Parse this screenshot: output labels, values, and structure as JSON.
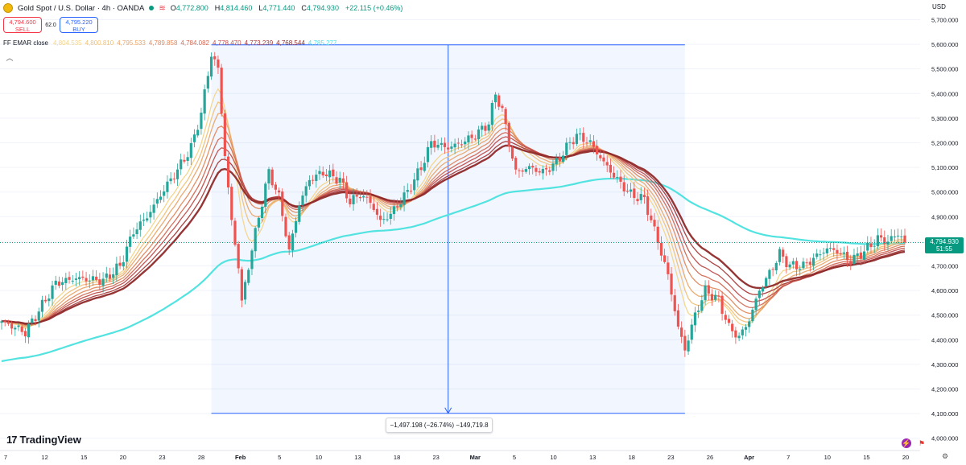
{
  "header": {
    "title": "Gold Spot / U.S. Dollar · 4h · OANDA",
    "wave_icon": "≋",
    "ohlc": [
      {
        "k": "O",
        "v": "4,772.800"
      },
      {
        "k": "H",
        "v": "4,814.460"
      },
      {
        "k": "L",
        "v": "4,771.440"
      },
      {
        "k": "C",
        "v": "4,794.930"
      }
    ],
    "change": "+22.115 (+0.46%)"
  },
  "trade": {
    "sell_price": "4,794.600",
    "sell_label": "SELL",
    "spread": "62.0",
    "buy_price": "4,795.220",
    "buy_label": "BUY"
  },
  "indicator": {
    "name": "FF EMAR close",
    "values": [
      "4,804.535",
      "4,800.810",
      "4,795.533",
      "4,789.858",
      "4,784.082",
      "4,778.470",
      "4,773.239",
      "4,768.544",
      "4,785.277"
    ],
    "colors": [
      "#f3d58a",
      "#f0c27a",
      "#eaa76b",
      "#e08a5f",
      "#d26a55",
      "#c04e4b",
      "#a83a3a",
      "#8f2a2a",
      "#52e3e1"
    ]
  },
  "price_axis": {
    "currency": "USD",
    "ticks": [
      5700,
      5600,
      5500,
      5400,
      5300,
      5200,
      5100,
      5000,
      4900,
      4800,
      4700,
      4600,
      4500,
      4400,
      4300,
      4200,
      4100,
      4000
    ],
    "tick_labels": [
      "5,700.000",
      "5,600.000",
      "5,500.000",
      "5,400.000",
      "5,300.000",
      "5,200.000",
      "5,100.000",
      "5,000.000",
      "4,900.000",
      "4,800.000",
      "4,700.000",
      "4,600.000",
      "4,500.000",
      "4,400.000",
      "4,300.000",
      "4,200.000",
      "4,100.000",
      "4,000.000"
    ],
    "current_price": "4,794.930",
    "countdown": "51:55"
  },
  "time_axis": {
    "labels": [
      "7",
      "12",
      "15",
      "20",
      "23",
      "28",
      "Feb",
      "5",
      "10",
      "13",
      "18",
      "23",
      "Mar",
      "5",
      "10",
      "13",
      "18",
      "23",
      "26",
      "Apr",
      "7",
      "10",
      "15",
      "20"
    ],
    "bold": [
      "Feb",
      "Mar",
      "Apr"
    ]
  },
  "measure": {
    "label": "−1,497.198 (−26.74%) −149,719.8",
    "from_price": 5598,
    "to_price": 4101,
    "from_index": 62,
    "to_index": 202
  },
  "branding": {
    "logo": "TradingView",
    "mark": "17"
  },
  "chart_data": {
    "type": "candlestick",
    "title": "Gold Spot / U.S. Dollar · 4h · OANDA",
    "xlabel": "",
    "ylabel": "USD",
    "ylim": [
      3950,
      5780
    ],
    "anchors": [
      [
        0,
        4475
      ],
      [
        7,
        4430
      ],
      [
        12,
        4540
      ],
      [
        16,
        4630
      ],
      [
        22,
        4650
      ],
      [
        30,
        4640
      ],
      [
        35,
        4700
      ],
      [
        39,
        4840
      ],
      [
        43,
        4900
      ],
      [
        48,
        5010
      ],
      [
        52,
        5090
      ],
      [
        56,
        5180
      ],
      [
        59,
        5320
      ],
      [
        62,
        5560
      ],
      [
        64,
        5500
      ],
      [
        66,
        5150
      ],
      [
        68,
        4880
      ],
      [
        70,
        4700
      ],
      [
        71,
        4550
      ],
      [
        73,
        4700
      ],
      [
        76,
        4900
      ],
      [
        79,
        5080
      ],
      [
        82,
        4980
      ],
      [
        85,
        4760
      ],
      [
        88,
        4950
      ],
      [
        91,
        5050
      ],
      [
        95,
        5080
      ],
      [
        100,
        5050
      ],
      [
        103,
        4960
      ],
      [
        106,
        4990
      ],
      [
        109,
        4960
      ],
      [
        112,
        4880
      ],
      [
        115,
        4910
      ],
      [
        120,
        5000
      ],
      [
        124,
        5100
      ],
      [
        127,
        5200
      ],
      [
        132,
        5180
      ],
      [
        136,
        5200
      ],
      [
        140,
        5230
      ],
      [
        144,
        5280
      ],
      [
        146,
        5400
      ],
      [
        148,
        5330
      ],
      [
        150,
        5200
      ],
      [
        152,
        5080
      ],
      [
        156,
        5100
      ],
      [
        160,
        5080
      ],
      [
        164,
        5120
      ],
      [
        168,
        5200
      ],
      [
        170,
        5230
      ],
      [
        174,
        5200
      ],
      [
        178,
        5120
      ],
      [
        182,
        5050
      ],
      [
        186,
        4990
      ],
      [
        190,
        4970
      ],
      [
        194,
        4800
      ],
      [
        197,
        4660
      ],
      [
        200,
        4450
      ],
      [
        202,
        4360
      ],
      [
        205,
        4500
      ],
      [
        208,
        4600
      ],
      [
        212,
        4560
      ],
      [
        215,
        4450
      ],
      [
        218,
        4410
      ],
      [
        221,
        4480
      ],
      [
        224,
        4600
      ],
      [
        227,
        4670
      ],
      [
        230,
        4750
      ],
      [
        233,
        4700
      ],
      [
        237,
        4700
      ],
      [
        241,
        4740
      ],
      [
        244,
        4770
      ],
      [
        247,
        4760
      ],
      [
        251,
        4720
      ],
      [
        255,
        4760
      ],
      [
        259,
        4810
      ],
      [
        262,
        4800
      ],
      [
        265,
        4830
      ],
      [
        268,
        4800
      ]
    ],
    "ema_ribbon_periods": [
      8,
      11,
      14,
      18,
      22,
      26,
      31,
      36
    ],
    "ema_long_period": 120,
    "ema_long_start": 4310,
    "colors": {
      "up": "#26a69a",
      "down": "#ef5350",
      "long_ema": "#52e3e1",
      "measure": "#2962ff"
    }
  }
}
